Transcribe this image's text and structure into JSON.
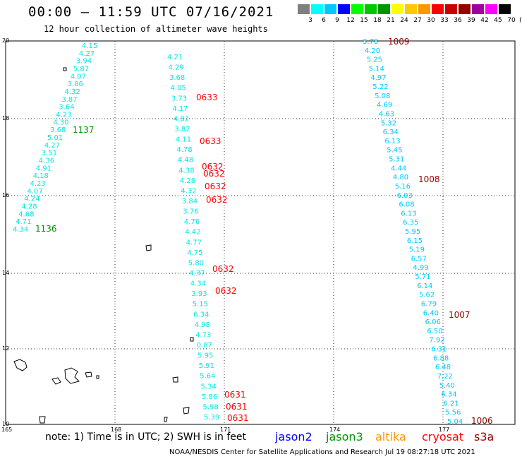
{
  "header": {
    "title": "00:00 – 11:59 UTC 07/16/2021",
    "subtitle": "12 hour collection of altimeter wave heights"
  },
  "legend": {
    "unit": "(ft)",
    "items": [
      {
        "label": "3",
        "color": "#7f7f7f"
      },
      {
        "label": "6",
        "color": "#00ffff"
      },
      {
        "label": "9",
        "color": "#00c8ff"
      },
      {
        "label": "12",
        "color": "#0000ff"
      },
      {
        "label": "15",
        "color": "#00ff00"
      },
      {
        "label": "18",
        "color": "#00c800"
      },
      {
        "label": "21",
        "color": "#009600"
      },
      {
        "label": "24",
        "color": "#ffff00"
      },
      {
        "label": "27",
        "color": "#ffc800"
      },
      {
        "label": "30",
        "color": "#ff9600"
      },
      {
        "label": "33",
        "color": "#ff0000"
      },
      {
        "label": "36",
        "color": "#c80000"
      },
      {
        "label": "39",
        "color": "#960000"
      },
      {
        "label": "42",
        "color": "#a000a0"
      },
      {
        "label": "45",
        "color": "#ff00ff"
      },
      {
        "label": "70",
        "color": "#000000"
      }
    ]
  },
  "axes": {
    "lon_ticks": [
      "165",
      "168",
      "171",
      "174",
      "177"
    ],
    "lat_ticks": [
      "20",
      "18",
      "16",
      "14",
      "12",
      "10"
    ]
  },
  "track_labels": [
    {
      "text": "1009",
      "color": "#960000"
    },
    {
      "text": "0633",
      "color": "#ff0000"
    },
    {
      "text": "1137",
      "color": "#009600"
    },
    {
      "text": "0633",
      "color": "#ff0000"
    },
    {
      "text": "0632",
      "color": "#ff0000"
    },
    {
      "text": "0632",
      "color": "#ff0000"
    },
    {
      "text": "1008",
      "color": "#960000"
    },
    {
      "text": "0632",
      "color": "#ff0000"
    },
    {
      "text": "0632",
      "color": "#ff0000"
    },
    {
      "text": "1136",
      "color": "#009600"
    },
    {
      "text": "0632",
      "color": "#ff0000"
    },
    {
      "text": "0632",
      "color": "#ff0000"
    },
    {
      "text": "1007",
      "color": "#960000"
    },
    {
      "text": "0631",
      "color": "#ff0000"
    },
    {
      "text": "0631",
      "color": "#ff0000"
    },
    {
      "text": "0631",
      "color": "#ff0000"
    },
    {
      "text": "1006",
      "color": "#960000"
    }
  ],
  "tracks": [
    {
      "name": "track-1137",
      "color": "#00e6e6",
      "values": [
        "4.15",
        "4.27",
        "3.94",
        "5.87",
        "4.07",
        "3.86",
        "4.32",
        "3.87",
        "3.64",
        "4.23",
        "4.30",
        "3.68",
        "5.01",
        "4.27",
        "3.51",
        "4.36",
        "4.91",
        "4.18",
        "4.23",
        "4.07",
        "4.24",
        "4.28",
        "4.68",
        "4.71",
        "4.34"
      ]
    },
    {
      "name": "track-0633",
      "color": "#00e6e6",
      "values": [
        "4.21",
        "4.29",
        "3.68",
        "4.05",
        "3.73",
        "4.17",
        "4.82",
        "3.82",
        "4.11",
        "4.78",
        "4.48",
        "4.38",
        "4.26",
        "4.32",
        "3.84",
        "3.76",
        "4.76",
        "4.42",
        "4.77",
        "4.75",
        "5.80",
        "4.37",
        "4.34",
        "3.93",
        "5.15",
        "6.34",
        "4.98",
        "4.73",
        "0.87",
        "5.95",
        "5.91",
        "5.64",
        "5.34",
        "5.86",
        "5.98",
        "5.39"
      ]
    },
    {
      "name": "track-1009",
      "color": "#00c8ff",
      "values": [
        "3.78",
        "4.20",
        "5.25",
        "5.14",
        "4.97",
        "5.22",
        "5.08",
        "4.69",
        "4.63",
        "5.32",
        "6.34",
        "6.13",
        "5.45",
        "5.31",
        "4.44",
        "4.80",
        "5.16",
        "6.03",
        "6.08",
        "6.13",
        "6.35",
        "5.95",
        "6.15",
        "5.19",
        "6.57",
        "4.99",
        "5.71",
        "6.14",
        "5.62",
        "6.79",
        "6.40",
        "6.06",
        "6.50",
        "7.92",
        "6.31",
        "6.88",
        "6.48",
        "7.22",
        "5.40",
        "6.34",
        "6.21",
        "5.56",
        "5.04"
      ]
    }
  ],
  "footer": {
    "note": "note: 1) Time is in UTC; 2) SWH is in feet",
    "satellites": [
      {
        "name": "jason2",
        "color": "#0000ff"
      },
      {
        "name": "jason3",
        "color": "#009600"
      },
      {
        "name": "altika",
        "color": "#ff9600"
      },
      {
        "name": "cryosat",
        "color": "#ff0000"
      },
      {
        "name": "s3a",
        "color": "#960000"
      }
    ],
    "credit": "NOAA/NESDIS Center for Satellite Applications and Research    Jul 19 08:27:18 UTC 2021"
  }
}
